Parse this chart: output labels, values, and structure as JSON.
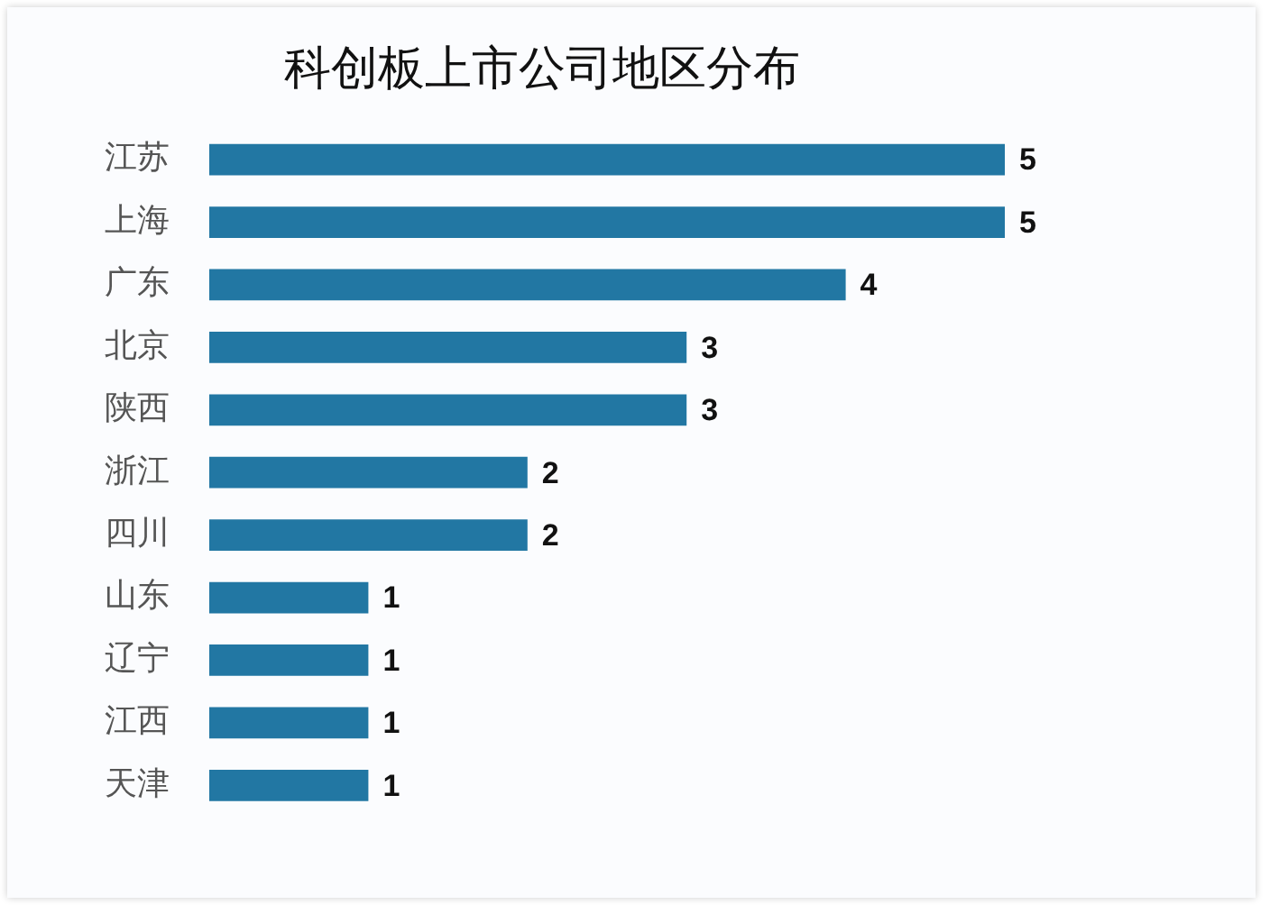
{
  "chart_data": {
    "type": "bar",
    "orientation": "horizontal",
    "title": "科创板上市公司地区分布",
    "categories": [
      "江苏",
      "上海",
      "广东",
      "北京",
      "陕西",
      "浙江",
      "四川",
      "山东",
      "辽宁",
      "江西",
      "天津"
    ],
    "values": [
      5,
      5,
      4,
      3,
      3,
      2,
      2,
      1,
      1,
      1,
      1
    ],
    "color": "#2277a3",
    "xlim": [
      0,
      5
    ],
    "data_labels": true,
    "grid": false,
    "legend": false,
    "tick_labels": "y"
  }
}
